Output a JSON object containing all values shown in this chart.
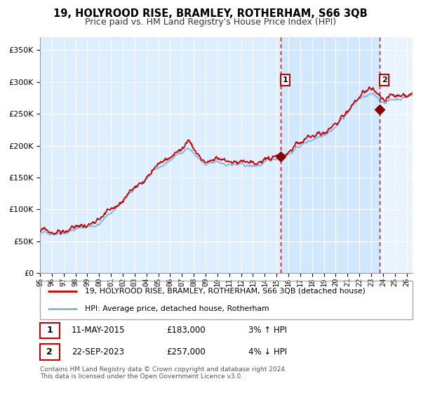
{
  "title": "19, HOLYROOD RISE, BRAMLEY, ROTHERHAM, S66 3QB",
  "subtitle": "Price paid vs. HM Land Registry's House Price Index (HPI)",
  "hpi_label": "HPI: Average price, detached house, Rotherham",
  "price_label": "19, HOLYROOD RISE, BRAMLEY, ROTHERHAM, S66 3QB (detached house)",
  "footnote1": "Contains HM Land Registry data © Crown copyright and database right 2024.",
  "footnote2": "This data is licensed under the Open Government Licence v3.0.",
  "sale1_date": "11-MAY-2015",
  "sale1_price": "£183,000",
  "sale1_hpi": "3% ↑ HPI",
  "sale2_date": "22-SEP-2023",
  "sale2_price": "£257,000",
  "sale2_hpi": "4% ↓ HPI",
  "hpi_color": "#7eb4ea",
  "price_color": "#cc0000",
  "marker_color": "#8b0000",
  "bg_color": "#ddeeff",
  "grid_color": "#cccccc",
  "ylim": [
    0,
    370000
  ],
  "xlim_start": 1995.0,
  "xlim_end": 2026.5,
  "sale1_x": 2015.36,
  "sale1_y": 183000,
  "sale2_x": 2023.72,
  "sale2_y": 257000
}
